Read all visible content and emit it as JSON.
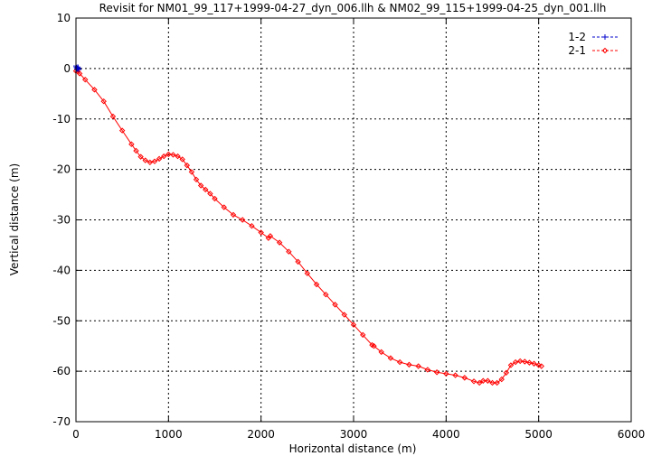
{
  "chart_data": {
    "type": "line",
    "title": "Revisit for NM01_99_117+1999-04-27_dyn_006.llh & NM02_99_115+1999-04-25_dyn_001.llh",
    "xlabel": "Horizontal distance (m)",
    "ylabel": "Vertical distance (m)",
    "xlim": [
      0,
      6000
    ],
    "ylim": [
      -70,
      10
    ],
    "xticks": [
      0,
      1000,
      2000,
      3000,
      4000,
      5000,
      6000
    ],
    "yticks": [
      10,
      0,
      -10,
      -20,
      -30,
      -40,
      -50,
      -60,
      -70
    ],
    "grid": true,
    "legend_position": "top-right",
    "series": [
      {
        "name": "1-2",
        "color": "#0000cc",
        "marker": "plus",
        "x": [
          0,
          5,
          10,
          15,
          20,
          25,
          30
        ],
        "y": [
          0.5,
          0.2,
          -0.1,
          0.0,
          0.3,
          0.1,
          -0.2
        ]
      },
      {
        "name": "2-1",
        "color": "#ff0000",
        "marker": "diamond",
        "x": [
          0,
          20,
          40,
          100,
          200,
          300,
          400,
          500,
          600,
          650,
          700,
          750,
          800,
          850,
          900,
          950,
          1000,
          1050,
          1100,
          1150,
          1200,
          1250,
          1300,
          1350,
          1400,
          1450,
          1500,
          1600,
          1700,
          1800,
          1900,
          2000,
          2080,
          2100,
          2200,
          2300,
          2400,
          2500,
          2600,
          2700,
          2800,
          2900,
          3000,
          3100,
          3200,
          3220,
          3300,
          3400,
          3500,
          3600,
          3700,
          3800,
          3900,
          4000,
          4100,
          4200,
          4300,
          4360,
          4400,
          4450,
          4500,
          4550,
          4600,
          4650,
          4700,
          4750,
          4800,
          4850,
          4900,
          4950,
          5000,
          5030
        ],
        "y": [
          -0.5,
          -0.6,
          -1.0,
          -2.2,
          -4.2,
          -6.5,
          -9.5,
          -12.3,
          -15.0,
          -16.3,
          -17.5,
          -18.2,
          -18.6,
          -18.4,
          -17.9,
          -17.4,
          -17.0,
          -17.1,
          -17.4,
          -18.0,
          -19.2,
          -20.5,
          -22.0,
          -23.2,
          -24.0,
          -24.8,
          -25.8,
          -27.5,
          -29.0,
          -30.0,
          -31.2,
          -32.5,
          -33.6,
          -33.2,
          -34.5,
          -36.3,
          -38.3,
          -40.6,
          -42.8,
          -44.8,
          -46.8,
          -48.8,
          -50.8,
          -52.8,
          -54.8,
          -55.0,
          -56.2,
          -57.4,
          -58.2,
          -58.7,
          -59.0,
          -59.7,
          -60.2,
          -60.5,
          -60.8,
          -61.3,
          -62.0,
          -62.3,
          -61.9,
          -61.9,
          -62.3,
          -62.3,
          -61.6,
          -60.3,
          -58.8,
          -58.2,
          -58.0,
          -58.1,
          -58.3,
          -58.5,
          -58.8,
          -59.0
        ]
      }
    ]
  }
}
